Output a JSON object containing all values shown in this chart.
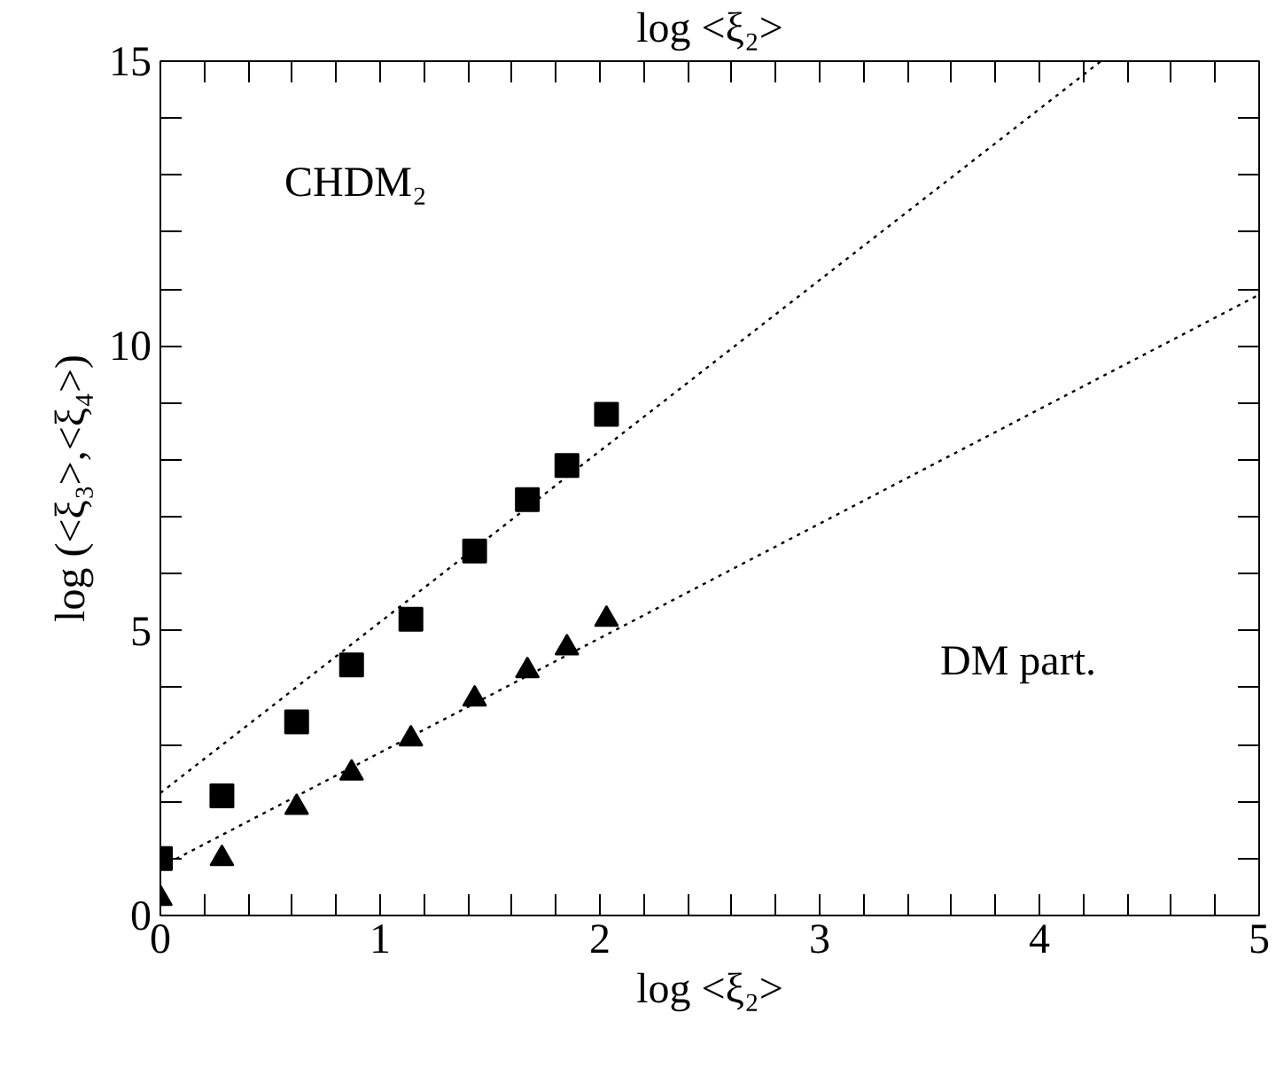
{
  "chart_data": {
    "type": "scatter",
    "xlabel": "log <ξ₂>",
    "x2label": "log <ξ₂>",
    "ylabel": "log (<ξ₃>,<ξ₄>)",
    "annotations": [
      "CHDM₂",
      "DM part."
    ],
    "xlim": [
      0,
      5
    ],
    "ylim": [
      0,
      15
    ],
    "xticks": [
      0,
      {
        "value": 0.2,
        "label": null
      },
      {
        "value": 0.4,
        "label": null
      },
      {
        "value": 0.6,
        "label": null
      },
      {
        "value": 0.8,
        "label": null
      },
      1,
      {
        "value": 1.2,
        "label": null
      },
      {
        "value": 1.4,
        "label": null
      },
      {
        "value": 1.6,
        "label": null
      },
      {
        "value": 1.8,
        "label": null
      },
      2,
      {
        "value": 2.2,
        "label": null
      },
      {
        "value": 2.4,
        "label": null
      },
      {
        "value": 2.6,
        "label": null
      },
      {
        "value": 2.8,
        "label": null
      },
      3,
      {
        "value": 3.2,
        "label": null
      },
      {
        "value": 3.4,
        "label": null
      },
      {
        "value": 3.6,
        "label": null
      },
      {
        "value": 3.8,
        "label": null
      },
      4,
      {
        "value": 4.2,
        "label": null
      },
      {
        "value": 4.4,
        "label": null
      },
      {
        "value": 4.6,
        "label": null
      },
      {
        "value": 4.8,
        "label": null
      },
      5
    ],
    "yticks": [
      0,
      {
        "value": 1,
        "label": null
      },
      {
        "value": 2,
        "label": null
      },
      {
        "value": 3,
        "label": null
      },
      {
        "value": 4,
        "label": null
      },
      5,
      {
        "value": 6,
        "label": null
      },
      {
        "value": 7,
        "label": null
      },
      {
        "value": 8,
        "label": null
      },
      {
        "value": 9,
        "label": null
      },
      10,
      {
        "value": 11,
        "label": null
      },
      {
        "value": 12,
        "label": null
      },
      {
        "value": 13,
        "label": null
      },
      {
        "value": 14,
        "label": null
      },
      15
    ],
    "grid": false,
    "series": [
      {
        "color": "#000000",
        "marker": "square",
        "x": [
          0,
          0.28,
          0.62,
          0.87,
          1.14,
          1.43,
          1.67,
          1.85,
          2.03
        ],
        "values": [
          1.0,
          2.1,
          3.4,
          4.4,
          5.2,
          6.4,
          7.3,
          7.9,
          8.8
        ]
      },
      {
        "color": "#000000",
        "marker": "triangle",
        "x": [
          0,
          0.28,
          0.62,
          0.87,
          1.14,
          1.43,
          1.67,
          1.85,
          2.03
        ],
        "values": [
          0.3,
          1.0,
          1.9,
          2.5,
          3.1,
          3.8,
          4.3,
          4.7,
          5.2
        ]
      },
      {
        "type": "line",
        "color": "#000000",
        "line_style": "dotted",
        "marker": "none",
        "x": [
          0,
          4.28
        ],
        "values": [
          2.15,
          15
        ]
      },
      {
        "type": "line",
        "color": "#000000",
        "line_style": "dotted",
        "marker": "none",
        "x": [
          0,
          5
        ],
        "values": [
          0.85,
          10.9
        ]
      }
    ]
  }
}
